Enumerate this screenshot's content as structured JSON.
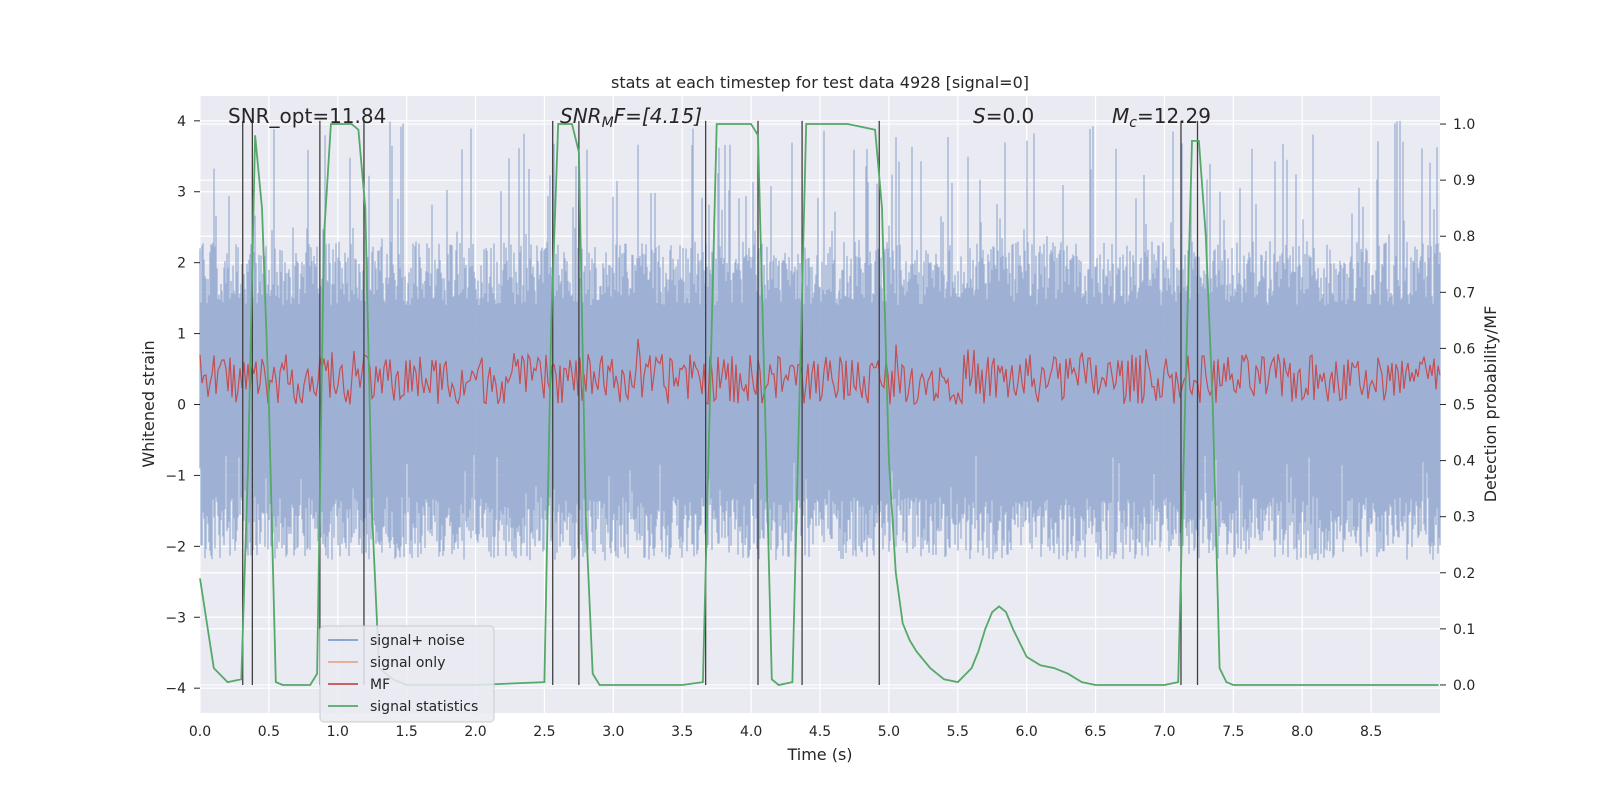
{
  "chart_data": {
    "type": "line",
    "title": "stats at each timestep for test data 4928 [signal=0]",
    "xlabel": "Time (s)",
    "ylabel": "Whitened strain",
    "ylabel_right": "Detection probability/MF",
    "xlim": [
      0,
      9.0
    ],
    "ylim": [
      -4.35,
      4.35
    ],
    "ylim_right": [
      -0.05,
      1.05
    ],
    "xticks": [
      "0.0",
      "0.5",
      "1.0",
      "1.5",
      "2.0",
      "2.5",
      "3.0",
      "3.5",
      "4.0",
      "4.5",
      "5.0",
      "5.5",
      "6.0",
      "6.5",
      "7.0",
      "7.5",
      "8.0",
      "8.5"
    ],
    "yticks": [
      "4",
      "3",
      "2",
      "1",
      "0",
      "−1",
      "−2",
      "−3",
      "−4"
    ],
    "yticks_right": [
      "1.0",
      "0.9",
      "0.8",
      "0.7",
      "0.6",
      "0.5",
      "0.4",
      "0.3",
      "0.2",
      "0.1",
      "0.0"
    ],
    "annotations": {
      "snr_opt": "SNR_opt=11.84",
      "snr_mf_base": "SNR",
      "snr_mf_sub": "M",
      "snr_mf_rest": "F=[4.15]",
      "s_italic": "S",
      "s_value": "=0.0",
      "mc_base": "M",
      "mc_sub": "c",
      "mc_value": "=12.29"
    },
    "legend": {
      "position": "lower-left",
      "entries": [
        {
          "label": "signal+ noise",
          "color": "#7f9bcf"
        },
        {
          "label": "signal only",
          "color": "#e8a58a"
        },
        {
          "label": "MF",
          "color": "#c44e52"
        },
        {
          "label": "signal statistics",
          "color": "#55a868"
        }
      ]
    },
    "series": [
      {
        "name": "signal+ noise",
        "color": "#9aaed3",
        "description": "noise band",
        "typical_range": [
          -2.2,
          2.3
        ],
        "peak_range": [
          -3.7,
          4.0
        ]
      },
      {
        "name": "MF",
        "color": "#c44e52",
        "axis": "right",
        "typical_range": [
          0.5,
          0.59
        ]
      },
      {
        "name": "signal statistics",
        "color": "#55a868",
        "axis": "right",
        "x": [
          0.0,
          0.1,
          0.2,
          0.3,
          0.35,
          0.4,
          0.45,
          0.5,
          0.55,
          0.6,
          0.7,
          0.8,
          0.85,
          0.9,
          0.95,
          1.0,
          1.05,
          1.1,
          1.15,
          1.2,
          1.25,
          1.3,
          1.4,
          1.5,
          2.0,
          2.5,
          2.55,
          2.6,
          2.65,
          2.7,
          2.75,
          2.8,
          2.85,
          2.9,
          3.0,
          3.5,
          3.65,
          3.7,
          3.75,
          3.8,
          4.0,
          4.05,
          4.1,
          4.15,
          4.2,
          4.3,
          4.35,
          4.4,
          4.45,
          4.5,
          4.7,
          4.9,
          4.95,
          5.0,
          5.05,
          5.1,
          5.15,
          5.2,
          5.3,
          5.4,
          5.5,
          5.6,
          5.65,
          5.7,
          5.75,
          5.8,
          5.85,
          5.9,
          6.0,
          6.1,
          6.2,
          6.3,
          6.4,
          6.5,
          6.6,
          7.0,
          7.1,
          7.15,
          7.2,
          7.25,
          7.3,
          7.35,
          7.4,
          7.45,
          7.5,
          7.55,
          7.6,
          8.0,
          8.5,
          8.99
        ],
        "y": [
          0.19,
          0.03,
          0.005,
          0.01,
          0.4,
          0.98,
          0.85,
          0.5,
          0.005,
          0.0,
          0.0,
          0.0,
          0.02,
          0.8,
          1.0,
          1.0,
          1.0,
          1.0,
          0.99,
          0.85,
          0.3,
          0.03,
          0.01,
          0.0,
          0.0,
          0.005,
          0.65,
          1.0,
          1.0,
          1.0,
          0.95,
          0.3,
          0.02,
          0.0,
          0.0,
          0.0,
          0.005,
          0.5,
          1.0,
          1.0,
          1.0,
          0.98,
          0.5,
          0.01,
          0.0,
          0.005,
          0.5,
          1.0,
          1.0,
          1.0,
          1.0,
          0.99,
          0.85,
          0.4,
          0.2,
          0.11,
          0.08,
          0.06,
          0.03,
          0.01,
          0.005,
          0.03,
          0.06,
          0.1,
          0.13,
          0.14,
          0.13,
          0.1,
          0.05,
          0.035,
          0.03,
          0.02,
          0.005,
          0.0,
          0.0,
          0.0,
          0.005,
          0.5,
          0.97,
          0.97,
          0.8,
          0.5,
          0.03,
          0.005,
          0.0,
          0.0,
          0.0,
          0.0,
          0.0,
          0.0
        ]
      }
    ],
    "vlines": [
      0.31,
      0.38,
      0.87,
      1.19,
      2.56,
      2.75,
      3.67,
      4.05,
      4.37,
      4.93,
      7.12,
      7.24
    ]
  }
}
